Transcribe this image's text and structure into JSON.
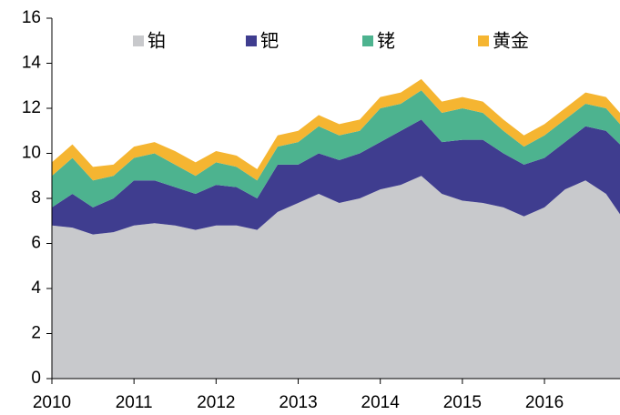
{
  "chart_data": {
    "type": "stacked_area",
    "x": [
      2010,
      2010.25,
      2010.5,
      2010.75,
      2011,
      2011.25,
      2011.5,
      2011.75,
      2012,
      2012.25,
      2012.5,
      2012.75,
      2013,
      2013.25,
      2013.5,
      2013.75,
      2014,
      2014.25,
      2014.5,
      2014.75,
      2015,
      2015.25,
      2015.5,
      2015.75,
      2016,
      2016.25,
      2016.5,
      2016.75,
      2016.92
    ],
    "series": [
      {
        "name": "铂",
        "color": "#c8c9cc",
        "values": [
          6.8,
          6.7,
          6.4,
          6.5,
          6.8,
          6.9,
          6.8,
          6.6,
          6.8,
          6.8,
          6.6,
          7.4,
          7.8,
          8.2,
          7.8,
          8.0,
          8.4,
          8.6,
          9.0,
          8.2,
          7.9,
          7.8,
          7.6,
          7.2,
          7.6,
          8.4,
          8.8,
          8.2,
          7.3
        ]
      },
      {
        "name": "钯",
        "color": "#3f3d8f",
        "values": [
          0.8,
          1.5,
          1.2,
          1.5,
          2.0,
          1.9,
          1.7,
          1.6,
          1.8,
          1.7,
          1.4,
          2.1,
          1.7,
          1.8,
          1.9,
          2.0,
          2.1,
          2.4,
          2.5,
          2.3,
          2.7,
          2.8,
          2.4,
          2.3,
          2.2,
          2.1,
          2.4,
          2.8,
          3.1
        ]
      },
      {
        "name": "铑",
        "color": "#4db38f",
        "values": [
          1.4,
          1.6,
          1.2,
          1.0,
          1.0,
          1.2,
          1.0,
          0.8,
          1.0,
          0.9,
          0.8,
          0.8,
          1.0,
          1.2,
          1.1,
          1.0,
          1.5,
          1.2,
          1.3,
          1.3,
          1.4,
          1.2,
          1.0,
          0.8,
          1.0,
          1.0,
          1.0,
          1.0,
          0.9
        ]
      },
      {
        "name": "黄金",
        "color": "#f5b531",
        "values": [
          0.6,
          0.6,
          0.6,
          0.5,
          0.5,
          0.5,
          0.6,
          0.6,
          0.5,
          0.5,
          0.5,
          0.5,
          0.5,
          0.5,
          0.5,
          0.5,
          0.5,
          0.5,
          0.5,
          0.5,
          0.5,
          0.5,
          0.5,
          0.5,
          0.5,
          0.5,
          0.5,
          0.5,
          0.5
        ]
      }
    ],
    "xlim": [
      2010,
      2016.92
    ],
    "xticks": [
      2010,
      2011,
      2012,
      2013,
      2014,
      2015,
      2016
    ],
    "ylim": [
      0,
      16
    ],
    "yticks": [
      0,
      2,
      4,
      6,
      8,
      10,
      12,
      14,
      16
    ]
  }
}
